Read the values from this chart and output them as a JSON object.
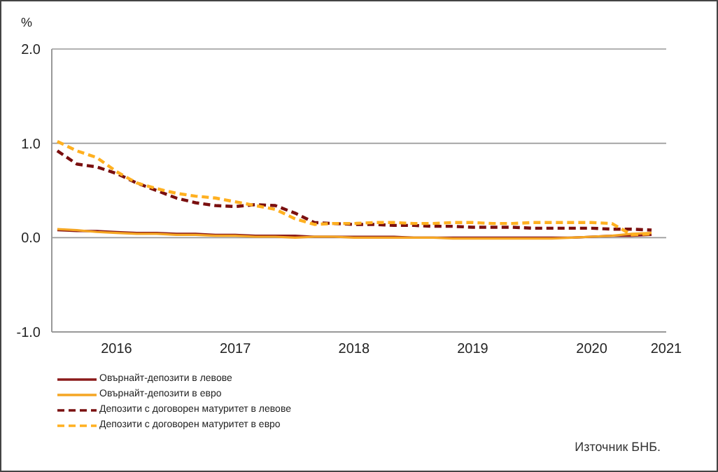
{
  "chart_data": {
    "type": "line",
    "ylabel": "%",
    "annotations": [
      "Източник БНБ."
    ],
    "x": [
      "2016-01",
      "2016-03",
      "2016-05",
      "2016-07",
      "2016-09",
      "2016-11",
      "2017-01",
      "2017-03",
      "2017-05",
      "2017-07",
      "2017-09",
      "2017-11",
      "2018-01",
      "2018-03",
      "2018-05",
      "2018-07",
      "2018-09",
      "2018-11",
      "2019-01",
      "2019-03",
      "2019-05",
      "2019-07",
      "2019-09",
      "2019-11",
      "2020-01",
      "2020-03",
      "2020-05",
      "2020-07",
      "2020-09",
      "2020-11",
      "2021-01"
    ],
    "series": [
      {
        "name": "Овърнайт-депозити в левове",
        "color": "#8b1a1a",
        "line_style": "solid",
        "values": [
          0.08,
          0.07,
          0.07,
          0.06,
          0.05,
          0.05,
          0.04,
          0.04,
          0.03,
          0.03,
          0.02,
          0.02,
          0.02,
          0.01,
          0.01,
          0.01,
          0.01,
          0.01,
          0.0,
          0.0,
          0.0,
          0.0,
          0.0,
          0.0,
          0.0,
          0.0,
          0.0,
          0.01,
          0.02,
          0.02,
          0.03
        ]
      },
      {
        "name": "Овърнайт-депозити в евро",
        "color": "#f5a623",
        "line_style": "solid",
        "values": [
          0.09,
          0.08,
          0.06,
          0.05,
          0.04,
          0.04,
          0.03,
          0.03,
          0.02,
          0.02,
          0.01,
          0.01,
          0.0,
          0.01,
          0.01,
          0.0,
          0.0,
          0.0,
          0.0,
          0.0,
          -0.01,
          -0.01,
          -0.01,
          -0.01,
          -0.01,
          -0.01,
          0.0,
          0.01,
          0.02,
          0.04,
          0.05
        ]
      },
      {
        "name": "Депозити с договорен матуритет в левове",
        "color": "#7a0f0f",
        "line_style": "dashed",
        "values": [
          0.92,
          0.78,
          0.75,
          0.68,
          0.58,
          0.5,
          0.42,
          0.37,
          0.34,
          0.33,
          0.35,
          0.34,
          0.26,
          0.16,
          0.15,
          0.14,
          0.14,
          0.13,
          0.13,
          0.12,
          0.12,
          0.11,
          0.11,
          0.11,
          0.1,
          0.1,
          0.1,
          0.1,
          0.09,
          0.09,
          0.08
        ]
      },
      {
        "name": "Депозити с договорен матуритет в евро",
        "color": "#ffb020",
        "line_style": "dashed",
        "values": [
          1.02,
          0.92,
          0.85,
          0.7,
          0.58,
          0.52,
          0.47,
          0.44,
          0.42,
          0.38,
          0.34,
          0.3,
          0.2,
          0.14,
          0.15,
          0.15,
          0.16,
          0.16,
          0.15,
          0.15,
          0.16,
          0.16,
          0.15,
          0.15,
          0.16,
          0.16,
          0.16,
          0.16,
          0.15,
          0.03,
          0.04
        ]
      }
    ],
    "xlim": [
      "2015-12-15",
      "2021-02-15"
    ],
    "xticks": [
      {
        "value": "2016-07",
        "label": "2016"
      },
      {
        "value": "2017-07",
        "label": "2017"
      },
      {
        "value": "2018-07",
        "label": "2018"
      },
      {
        "value": "2019-07",
        "label": "2019"
      },
      {
        "value": "2020-07",
        "label": "2020"
      },
      {
        "value": "2021-02-15",
        "label": "2021"
      }
    ],
    "ylim": [
      -1.0,
      2.0
    ],
    "yticks": [
      {
        "value": -1.0,
        "label": "-1.0"
      },
      {
        "value": 0,
        "label": "0.0"
      },
      {
        "value": 1.0,
        "label": "1.0"
      },
      {
        "value": 2.0,
        "label": "2.0"
      }
    ],
    "grid": "y",
    "legend": "bottom left",
    "marker": "none"
  }
}
